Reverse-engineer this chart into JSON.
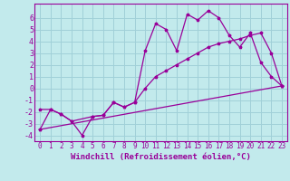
{
  "xlabel": "Windchill (Refroidissement éolien,°C)",
  "xlim": [
    -0.5,
    23.5
  ],
  "ylim": [
    -4.5,
    7.2
  ],
  "bg_color": "#c2eaec",
  "line_color": "#990099",
  "grid_color": "#a0d0d8",
  "line1_x": [
    0,
    1,
    2,
    3,
    4,
    5,
    6,
    7,
    8,
    9,
    10,
    11,
    12,
    13,
    14,
    15,
    16,
    17,
    18,
    19,
    20,
    21,
    22,
    23
  ],
  "line1_y": [
    -3.5,
    -1.8,
    -2.2,
    -2.8,
    -4.0,
    -2.4,
    -2.3,
    -1.2,
    -1.6,
    -1.2,
    3.2,
    5.5,
    5.0,
    3.2,
    6.3,
    5.8,
    6.6,
    6.0,
    4.5,
    3.5,
    4.7,
    2.2,
    1.0,
    0.2
  ],
  "line2_x": [
    0,
    23
  ],
  "line2_y": [
    -3.5,
    0.2
  ],
  "line3_x": [
    0,
    1,
    2,
    3,
    5,
    6,
    7,
    8,
    9,
    10,
    11,
    12,
    13,
    14,
    15,
    16,
    17,
    18,
    19,
    20,
    21,
    22,
    23
  ],
  "line3_y": [
    -1.8,
    -1.8,
    -2.2,
    -2.8,
    -2.4,
    -2.3,
    -1.2,
    -1.6,
    -1.2,
    0.0,
    1.0,
    1.5,
    2.0,
    2.5,
    3.0,
    3.5,
    3.8,
    4.0,
    4.2,
    4.5,
    4.7,
    3.0,
    0.2
  ],
  "xtick_labels": [
    "0",
    "1",
    "2",
    "3",
    "4",
    "5",
    "6",
    "7",
    "8",
    "9",
    "10",
    "11",
    "12",
    "13",
    "14",
    "15",
    "16",
    "17",
    "18",
    "19",
    "20",
    "21",
    "22",
    "23"
  ],
  "ytick_labels": [
    "-4",
    "-3",
    "-2",
    "-1",
    "0",
    "1",
    "2",
    "3",
    "4",
    "5",
    "6"
  ],
  "ytick_vals": [
    -4,
    -3,
    -2,
    -1,
    0,
    1,
    2,
    3,
    4,
    5,
    6
  ],
  "xtick_fontsize": 5.5,
  "ytick_fontsize": 6,
  "xlabel_fontsize": 6.5
}
